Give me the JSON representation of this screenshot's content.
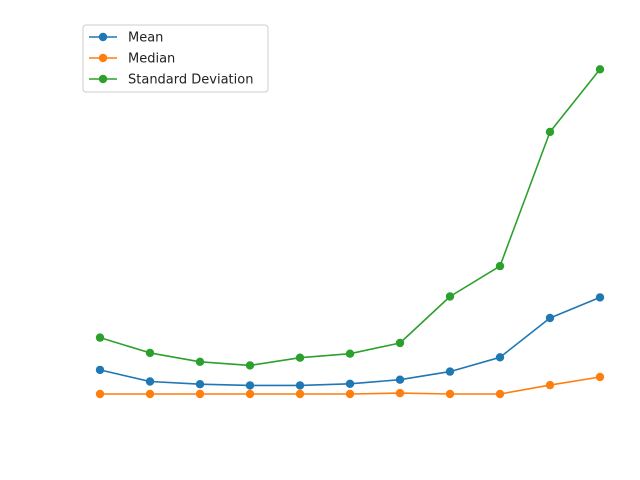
{
  "chart_data": {
    "type": "line",
    "x": [
      0,
      1,
      2,
      3,
      4,
      5,
      6,
      7,
      8,
      9,
      10
    ],
    "ylim": [
      -2.5,
      21.7
    ],
    "grid": false,
    "axes_visible": false,
    "legend_placement": "top-left",
    "series": [
      {
        "name": "Mean",
        "color": "#1f77b4",
        "values": [
          1.7,
          1.05,
          0.9,
          0.83,
          0.83,
          0.92,
          1.15,
          1.6,
          2.4,
          4.6,
          5.75
        ]
      },
      {
        "name": "Median",
        "color": "#ff7f0e",
        "values": [
          0.35,
          0.35,
          0.35,
          0.35,
          0.35,
          0.35,
          0.4,
          0.35,
          0.35,
          0.85,
          1.3
        ]
      },
      {
        "name": "Standard Deviation",
        "color": "#2ca02c",
        "values": [
          3.5,
          2.65,
          2.15,
          1.95,
          2.38,
          2.6,
          3.2,
          5.8,
          7.5,
          15.0,
          18.5
        ]
      }
    ]
  }
}
